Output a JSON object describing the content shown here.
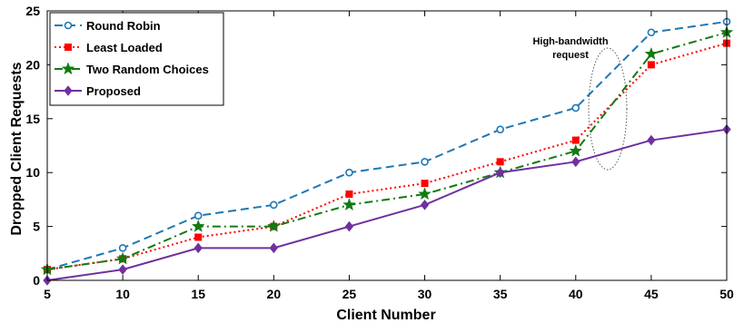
{
  "chart_data": {
    "type": "line",
    "title": "",
    "xlabel": "Client Number",
    "ylabel": "Dropped Client Requests",
    "x": [
      5,
      10,
      15,
      20,
      25,
      30,
      35,
      40,
      45,
      50
    ],
    "xlim": [
      5,
      50
    ],
    "ylim": [
      0,
      25
    ],
    "xticks": [
      5,
      10,
      15,
      20,
      25,
      30,
      35,
      40,
      45,
      50
    ],
    "yticks": [
      0,
      5,
      10,
      15,
      20,
      25
    ],
    "grid": false,
    "legend_position": "top-left",
    "series": [
      {
        "name": "Round Robin",
        "values": [
          1,
          3,
          6,
          7,
          10,
          11,
          14,
          16,
          23,
          24
        ],
        "color": "#1f77b4",
        "dash": "dashed",
        "marker": "circle"
      },
      {
        "name": "Least Loaded",
        "values": [
          1,
          2,
          4,
          5,
          8,
          9,
          11,
          13,
          20,
          22
        ],
        "color": "#ff0000",
        "dash": "dotted",
        "marker": "square"
      },
      {
        "name": "Two Random Choices",
        "values": [
          1,
          2,
          5,
          5,
          7,
          8,
          10,
          12,
          21,
          23
        ],
        "color": "#117a11",
        "dash": "dashdot",
        "marker": "star"
      },
      {
        "name": "Proposed",
        "values": [
          0,
          1,
          3,
          3,
          5,
          7,
          10,
          11,
          13,
          14
        ],
        "color": "#7030a0",
        "dash": "solid",
        "marker": "diamond"
      }
    ],
    "annotation": {
      "lines": [
        "High-bandwidth",
        "request"
      ]
    }
  }
}
